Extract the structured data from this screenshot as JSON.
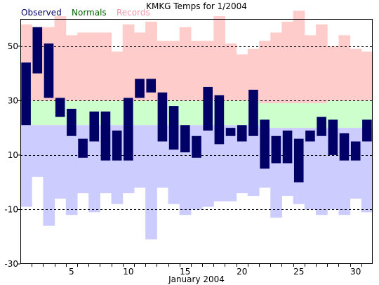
{
  "chart_data": {
    "type": "bar",
    "title": "KMKG Temps for 1/2004",
    "xlabel": "January 2004",
    "ylabel": "",
    "ylim": [
      -30,
      60
    ],
    "yticks": [
      -30,
      -10,
      10,
      30,
      50
    ],
    "xticks": [
      5,
      10,
      15,
      20,
      25,
      30
    ],
    "grid": "dashed horizontal at y ticks",
    "legend": [
      {
        "name": "Observed",
        "color": "#000066"
      },
      {
        "name": "Normals",
        "color": "#006600"
      },
      {
        "name": "Records",
        "color": "#ee99aa"
      }
    ],
    "colors": {
      "observed": "#000066",
      "normals": "#ccffcc",
      "record_high": "#ffcccc",
      "record_low": "#ccccff",
      "plot_border": "#000000",
      "grid": "#000000"
    },
    "days": [
      1,
      2,
      3,
      4,
      5,
      6,
      7,
      8,
      9,
      10,
      11,
      12,
      13,
      14,
      15,
      16,
      17,
      18,
      19,
      20,
      21,
      22,
      23,
      24,
      25,
      26,
      27,
      28,
      29,
      30,
      31
    ],
    "observed_high": [
      44,
      57,
      51,
      31,
      27,
      16,
      26,
      26,
      19,
      31,
      38,
      38,
      33,
      28,
      21,
      17,
      35,
      32,
      20,
      21,
      34,
      23,
      17,
      19,
      16,
      19,
      24,
      23,
      18,
      15,
      23
    ],
    "observed_low": [
      21,
      40,
      31,
      24,
      17,
      9,
      15,
      8,
      8,
      8,
      31,
      33,
      15,
      12,
      11,
      9,
      19,
      14,
      17,
      15,
      17,
      5,
      7,
      7,
      0,
      15,
      17,
      10,
      8,
      8,
      15
    ],
    "normal_high": [
      30,
      30,
      30,
      30,
      30,
      30,
      30,
      30,
      30,
      30,
      30,
      30,
      30,
      30,
      30,
      30,
      30,
      30,
      30,
      30,
      30,
      29,
      29,
      29,
      29,
      29,
      29,
      30,
      30,
      30,
      30
    ],
    "normal_low": [
      21,
      21,
      21,
      21,
      21,
      21,
      21,
      21,
      21,
      21,
      21,
      21,
      21,
      21,
      21,
      21,
      21,
      21,
      21,
      21,
      21,
      20,
      20,
      20,
      20,
      20,
      20,
      20,
      20,
      20,
      20
    ],
    "record_high": [
      58,
      57,
      57,
      61,
      54,
      55,
      55,
      55,
      48,
      58,
      55,
      59,
      52,
      52,
      57,
      52,
      52,
      61,
      51,
      47,
      49,
      52,
      55,
      59,
      63,
      54,
      58,
      50,
      54,
      49,
      48
    ],
    "record_low": [
      -9,
      2,
      -16,
      -6,
      -12,
      -4,
      -11,
      -4,
      -8,
      -4,
      -2,
      -21,
      -2,
      -8,
      -12,
      -10,
      -9,
      -7,
      -7,
      -4,
      -5,
      -2,
      -13,
      -5,
      -8,
      -10,
      -12,
      -10,
      -12,
      -6,
      -11
    ]
  }
}
